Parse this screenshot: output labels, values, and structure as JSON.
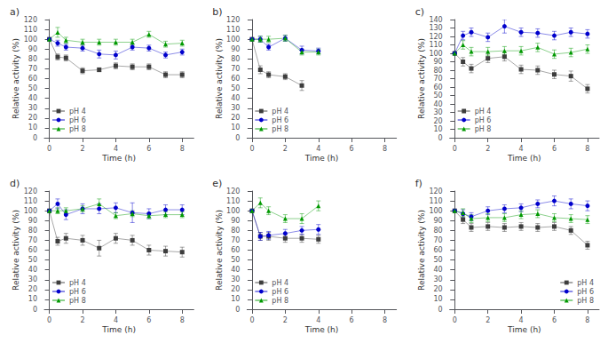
{
  "chart_data": [
    {
      "type": "line",
      "title": "a)",
      "xlabel": "Time (h)",
      "ylabel": "Relative activity (%)",
      "xlim": [
        -0.3,
        8.7
      ],
      "xticks": [
        0,
        2,
        4,
        6,
        8
      ],
      "ylim": [
        0,
        120
      ],
      "yticks": [
        0,
        10,
        20,
        30,
        40,
        50,
        60,
        70,
        80,
        90,
        100,
        110,
        120
      ],
      "grid": false,
      "legend": "lower left",
      "series": [
        {
          "name": "pH 4",
          "color": "#3d3d3d",
          "marker": "square",
          "x": [
            0,
            0.5,
            1,
            2,
            3,
            4,
            5,
            6,
            7,
            8
          ],
          "values": [
            100,
            82,
            81,
            68,
            69,
            73,
            72,
            72,
            64,
            64
          ],
          "errors": [
            0,
            3,
            3,
            3,
            2,
            3,
            3,
            3,
            3,
            3
          ]
        },
        {
          "name": "pH 6",
          "color": "#0000cc",
          "marker": "circle",
          "x": [
            0,
            0.5,
            1,
            2,
            3,
            4,
            5,
            6,
            7,
            8
          ],
          "values": [
            100,
            96,
            92,
            91,
            85,
            84,
            92,
            91,
            84,
            87
          ],
          "errors": [
            0,
            3,
            3,
            3,
            4,
            4,
            3,
            3,
            3,
            3
          ]
        },
        {
          "name": "pH 8",
          "color": "#009900",
          "marker": "triangle",
          "x": [
            0,
            0.5,
            1,
            2,
            3,
            4,
            5,
            6,
            7,
            8
          ],
          "values": [
            100,
            107,
            99,
            97,
            97,
            97,
            97,
            105,
            95,
            96
          ],
          "errors": [
            0,
            5,
            3,
            3,
            3,
            3,
            3,
            3,
            3,
            3
          ]
        }
      ]
    },
    {
      "type": "line",
      "title": "b)",
      "xlabel": "Time (h)",
      "ylabel": "Relative activity (%)",
      "xlim": [
        -0.3,
        8.7
      ],
      "xticks": [
        0,
        2,
        4,
        6,
        8
      ],
      "ylim": [
        0,
        120
      ],
      "yticks": [
        0,
        10,
        20,
        30,
        40,
        50,
        60,
        70,
        80,
        90,
        100,
        110,
        120
      ],
      "grid": false,
      "legend": "lower left",
      "series": [
        {
          "name": "pH 4",
          "color": "#3d3d3d",
          "marker": "square",
          "x": [
            0,
            0.5,
            1,
            2,
            3
          ],
          "values": [
            100,
            69,
            64,
            62,
            53
          ],
          "errors": [
            0,
            4,
            3,
            3,
            5
          ]
        },
        {
          "name": "pH 6",
          "color": "#0000cc",
          "marker": "circle",
          "x": [
            0,
            0.5,
            1,
            2,
            3,
            4
          ],
          "values": [
            100,
            100,
            92,
            101,
            89,
            88
          ],
          "errors": [
            0,
            3,
            3,
            3,
            4,
            3
          ]
        },
        {
          "name": "pH 8",
          "color": "#009900",
          "marker": "triangle",
          "x": [
            0,
            0.5,
            1,
            2,
            3,
            4
          ],
          "values": [
            100,
            100,
            100,
            101,
            87,
            87
          ],
          "errors": [
            0,
            3,
            3,
            3,
            3,
            3
          ]
        }
      ]
    },
    {
      "type": "line",
      "title": "c)",
      "xlabel": "Time (h)",
      "ylabel": "Relative activity (%)",
      "xlim": [
        -0.3,
        8.7
      ],
      "xticks": [
        0,
        2,
        4,
        6,
        8
      ],
      "ylim": [
        0,
        140
      ],
      "yticks": [
        0,
        10,
        20,
        30,
        40,
        50,
        60,
        70,
        80,
        90,
        100,
        110,
        120,
        130,
        140
      ],
      "grid": false,
      "legend": "lower left",
      "series": [
        {
          "name": "pH 4",
          "color": "#3d3d3d",
          "marker": "square",
          "x": [
            0,
            0.5,
            1,
            2,
            3,
            4,
            5,
            6,
            7,
            8
          ],
          "values": [
            100,
            90,
            82,
            94,
            96,
            81,
            80,
            75,
            73,
            58
          ],
          "errors": [
            0,
            5,
            5,
            5,
            5,
            5,
            5,
            5,
            6,
            5
          ]
        },
        {
          "name": "pH 6",
          "color": "#0000cc",
          "marker": "circle",
          "x": [
            0,
            0.5,
            1,
            2,
            3,
            4,
            5,
            6,
            7,
            8
          ],
          "values": [
            100,
            121,
            125,
            119,
            132,
            125,
            124,
            121,
            125,
            123
          ],
          "errors": [
            0,
            5,
            5,
            5,
            8,
            5,
            5,
            5,
            5,
            5
          ]
        },
        {
          "name": "pH 8",
          "color": "#009900",
          "marker": "triangle",
          "x": [
            0,
            0.5,
            1,
            2,
            3,
            4,
            5,
            6,
            7,
            8
          ],
          "values": [
            100,
            110,
            102,
            102,
            103,
            103,
            107,
            99,
            101,
            105
          ],
          "errors": [
            0,
            5,
            5,
            5,
            5,
            5,
            5,
            5,
            5,
            5
          ]
        }
      ]
    },
    {
      "type": "line",
      "title": "d)",
      "xlabel": "Time (h)",
      "ylabel": "Relative activity (%)",
      "xlim": [
        -0.3,
        8.7
      ],
      "xticks": [
        0,
        2,
        4,
        6,
        8
      ],
      "ylim": [
        0,
        120
      ],
      "yticks": [
        0,
        10,
        20,
        30,
        40,
        50,
        60,
        70,
        80,
        90,
        100,
        110,
        120
      ],
      "grid": false,
      "legend": "lower left",
      "series": [
        {
          "name": "pH 4",
          "color": "#3d3d3d",
          "marker": "square",
          "x": [
            0,
            0.5,
            1,
            2,
            3,
            4,
            5,
            6,
            7,
            8
          ],
          "values": [
            100,
            69,
            72,
            70,
            62,
            72,
            70,
            60,
            59,
            58
          ],
          "errors": [
            0,
            4,
            5,
            5,
            8,
            5,
            5,
            5,
            5,
            5
          ]
        },
        {
          "name": "pH 6",
          "color": "#0000cc",
          "marker": "circle",
          "x": [
            0,
            0.5,
            1,
            2,
            3,
            4,
            5,
            6,
            7,
            8
          ],
          "values": [
            100,
            107,
            96,
            102,
            102,
            103,
            98,
            97,
            101,
            101
          ],
          "errors": [
            0,
            5,
            5,
            5,
            5,
            5,
            10,
            5,
            5,
            5
          ]
        },
        {
          "name": "pH 8",
          "color": "#009900",
          "marker": "triangle",
          "x": [
            0,
            0.5,
            1,
            2,
            3,
            4,
            5,
            6,
            7,
            8
          ],
          "values": [
            100,
            100,
            100,
            102,
            107,
            95,
            97,
            95,
            96,
            96
          ],
          "errors": [
            0,
            3,
            3,
            3,
            5,
            3,
            3,
            3,
            3,
            3
          ]
        }
      ]
    },
    {
      "type": "line",
      "title": "e)",
      "xlabel": "Time (h)",
      "ylabel": "Relative activity (%)",
      "xlim": [
        -0.3,
        8.7
      ],
      "xticks": [
        0,
        2,
        4,
        6,
        8
      ],
      "ylim": [
        0,
        120
      ],
      "yticks": [
        0,
        10,
        20,
        30,
        40,
        50,
        60,
        70,
        80,
        90,
        100,
        110,
        120
      ],
      "grid": false,
      "legend": "lower left",
      "series": [
        {
          "name": "pH 4",
          "color": "#3d3d3d",
          "marker": "square",
          "x": [
            0,
            0.5,
            1,
            2,
            3,
            4
          ],
          "values": [
            100,
            74,
            74,
            72,
            72,
            71
          ],
          "errors": [
            0,
            4,
            4,
            4,
            4,
            4
          ]
        },
        {
          "name": "pH 6",
          "color": "#0000cc",
          "marker": "circle",
          "x": [
            0,
            0.5,
            1,
            2,
            3,
            4
          ],
          "values": [
            100,
            74,
            75,
            77,
            80,
            81
          ],
          "errors": [
            0,
            4,
            4,
            4,
            4,
            5
          ]
        },
        {
          "name": "pH 8",
          "color": "#009900",
          "marker": "triangle",
          "x": [
            0,
            0.5,
            1,
            2,
            3,
            4
          ],
          "values": [
            100,
            108,
            100,
            92,
            92,
            105
          ],
          "errors": [
            0,
            5,
            4,
            4,
            5,
            5
          ]
        }
      ]
    },
    {
      "type": "line",
      "title": "f)",
      "xlabel": "Time (h)",
      "ylabel": "Relative activity (%)",
      "xlim": [
        -0.3,
        8.7
      ],
      "xticks": [
        0,
        2,
        4,
        6,
        8
      ],
      "ylim": [
        0,
        120
      ],
      "yticks": [
        0,
        10,
        20,
        30,
        40,
        50,
        60,
        70,
        80,
        90,
        100,
        110,
        120
      ],
      "grid": false,
      "legend": "lower right",
      "series": [
        {
          "name": "pH 4",
          "color": "#3d3d3d",
          "marker": "square",
          "x": [
            0,
            0.5,
            1,
            2,
            3,
            4,
            5,
            6,
            7,
            8
          ],
          "values": [
            100,
            91,
            83,
            84,
            83,
            84,
            83,
            84,
            80,
            65
          ],
          "errors": [
            0,
            4,
            4,
            4,
            4,
            4,
            4,
            4,
            4,
            4
          ]
        },
        {
          "name": "pH 6",
          "color": "#0000cc",
          "marker": "circle",
          "x": [
            0,
            0.5,
            1,
            2,
            3,
            4,
            5,
            6,
            7,
            8
          ],
          "values": [
            100,
            97,
            94,
            100,
            102,
            103,
            107,
            110,
            107,
            105
          ],
          "errors": [
            0,
            4,
            4,
            4,
            4,
            4,
            4,
            5,
            5,
            5
          ]
        },
        {
          "name": "pH 8",
          "color": "#009900",
          "marker": "triangle",
          "x": [
            0,
            0.5,
            1,
            2,
            3,
            4,
            5,
            6,
            7,
            8
          ],
          "values": [
            100,
            98,
            92,
            93,
            93,
            96,
            97,
            93,
            92,
            91
          ],
          "errors": [
            0,
            4,
            4,
            4,
            4,
            4,
            4,
            4,
            4,
            4
          ]
        }
      ]
    }
  ]
}
